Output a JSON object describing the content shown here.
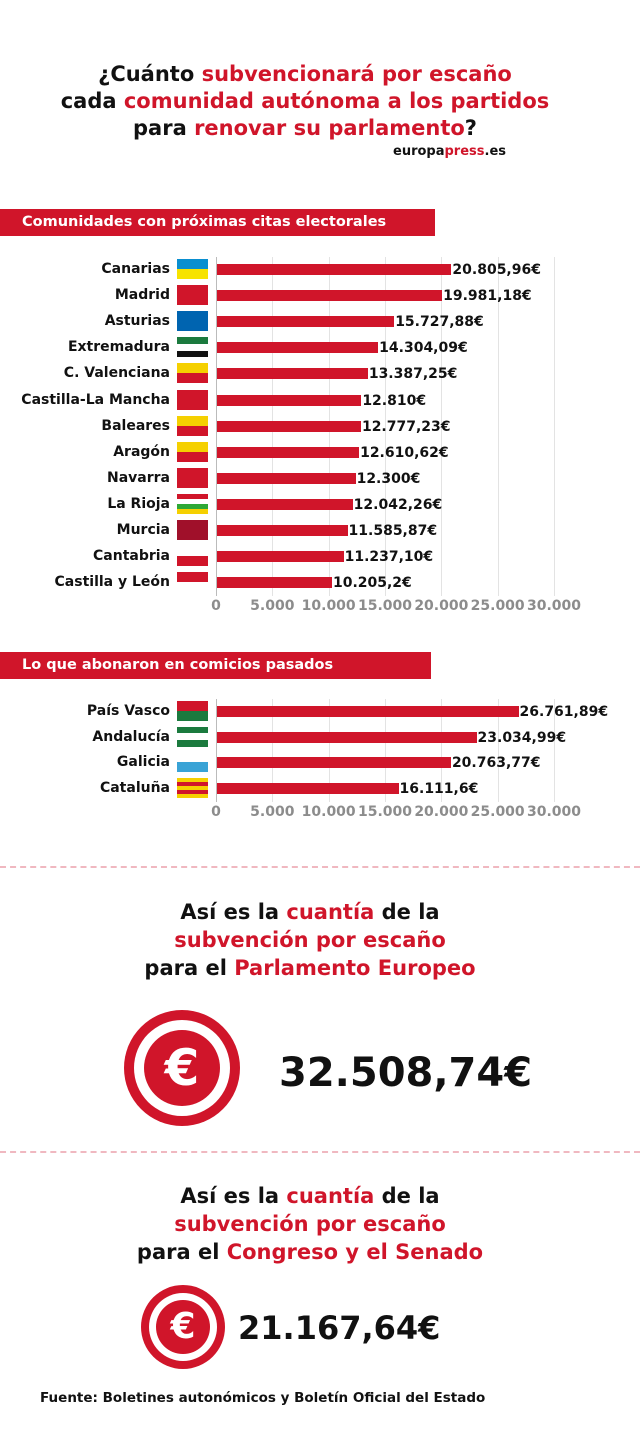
{
  "header": {
    "line1": {
      "a": "¿Cuánto ",
      "b": "subvencionará por escaño"
    },
    "line2": {
      "a": "cada ",
      "b": "comunidad autónoma a los partidos"
    },
    "line3": {
      "a": "para ",
      "b": "renovar su parlamento",
      "c": "?"
    },
    "brand": {
      "a": "europa",
      "b": "press",
      "c": ".es"
    }
  },
  "colors": {
    "accent": "#d0152a",
    "tick": "#8c8c8c"
  },
  "chart_data": [
    {
      "type": "bar",
      "orientation": "horizontal",
      "title": "Comunidades con próximas citas electorales",
      "categories": [
        "Canarias",
        "Madrid",
        "Asturias",
        "Extremadura",
        "C. Valenciana",
        "Castilla-La Mancha",
        "Baleares",
        "Aragón",
        "Navarra",
        "La Rioja",
        "Murcia",
        "Cantabria",
        "Castilla y León"
      ],
      "values": [
        20805.96,
        19981.18,
        15727.88,
        14304.09,
        13387.25,
        12810,
        12777.23,
        12610.62,
        12300,
        12042.26,
        11585.87,
        11237.1,
        10205.2
      ],
      "labels": [
        "20.805,96€",
        "19.981,18€",
        "15.727,88€",
        "14.304,09€",
        "13.387,25€",
        "12.810€",
        "12.777,23€",
        "12.610,62€",
        "12.300€",
        "12.042,26€",
        "11.585,87€",
        "11.237,10€",
        "10.205,2€"
      ],
      "xlim": [
        0,
        30000
      ],
      "ticks": [
        "0",
        "5.000",
        "10.000",
        "15.000",
        "20.000",
        "25.000",
        "30.000"
      ],
      "grid": true
    },
    {
      "type": "bar",
      "orientation": "horizontal",
      "title": "Lo que abonaron en comicios pasados",
      "categories": [
        "País Vasco",
        "Andalucía",
        "Galicia",
        "Cataluña"
      ],
      "values": [
        26761.89,
        23034.99,
        20763.77,
        16111.6
      ],
      "labels": [
        "26.761,89€",
        "23.034,99€",
        "20.763,77€",
        "16.111,6€"
      ],
      "xlim": [
        0,
        30000
      ],
      "ticks": [
        "0",
        "5.000",
        "10.000",
        "15.000",
        "20.000",
        "25.000",
        "30.000"
      ],
      "grid": true
    }
  ],
  "europeo": {
    "l1": {
      "a": "Así es la ",
      "b": "cuantía",
      "c": " de la"
    },
    "l2": "subvención por escaño",
    "l3": {
      "a": "para el ",
      "b": "Parlamento Europeo"
    },
    "amount": "32.508,74€",
    "icon": "euro-icon"
  },
  "congreso": {
    "l1": {
      "a": "Así es la ",
      "b": "cuantía",
      "c": " de la"
    },
    "l2": "subvención por escaño",
    "l3": {
      "a": "para el ",
      "b": "Congreso y el Senado"
    },
    "amount": "21.167,64€",
    "icon": "euro-icon"
  },
  "source": "Fuente: Boletines autonómicos y Boletín Oficial del Estado"
}
